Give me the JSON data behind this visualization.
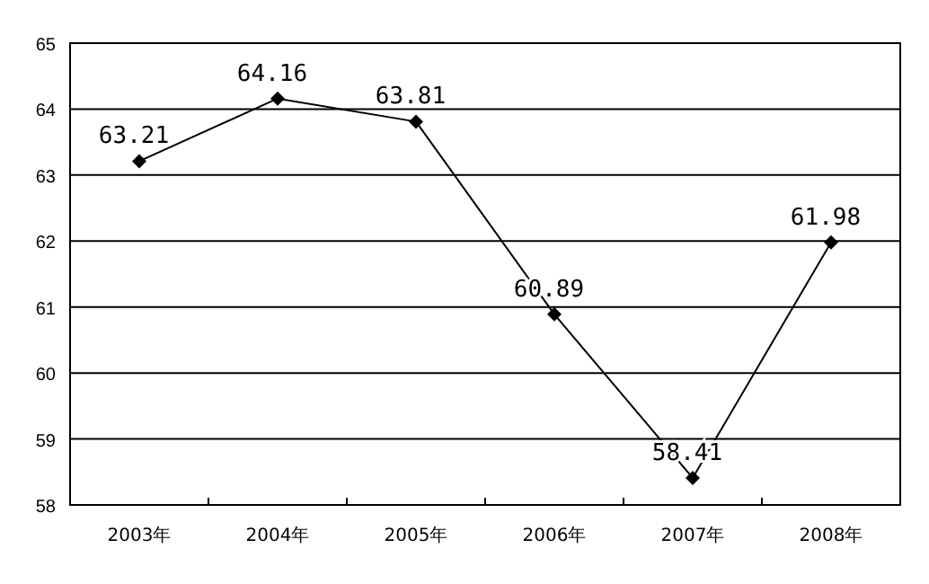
{
  "chart_data": {
    "type": "line",
    "categories": [
      "2003年",
      "2004年",
      "2005年",
      "2006年",
      "2007年",
      "2008年"
    ],
    "series": [
      {
        "color": "#000000",
        "values": [
          63.21,
          64.16,
          63.81,
          60.89,
          58.41,
          61.98
        ]
      }
    ],
    "ylim": [
      58,
      65
    ],
    "yticks": [
      58,
      59,
      60,
      61,
      62,
      63,
      64,
      65
    ],
    "grid": "y",
    "marker": "diamond",
    "line_style": "solid",
    "data_labels": true
  }
}
